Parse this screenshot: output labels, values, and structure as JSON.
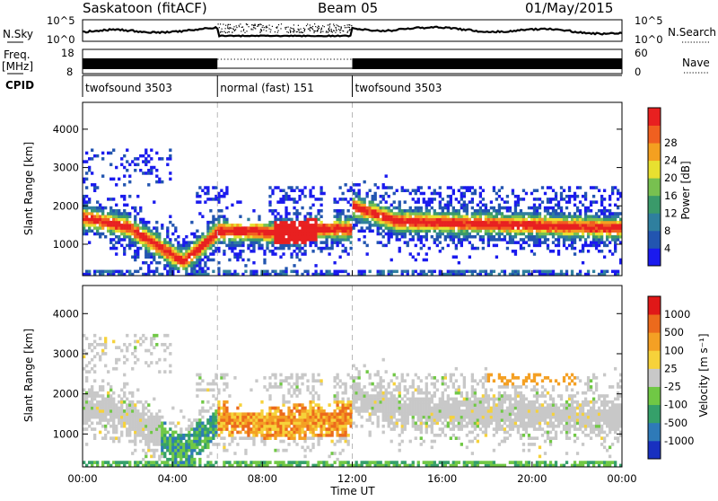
{
  "header": {
    "station": "Saskatoon (fitACF)",
    "beam": "Beam 05",
    "date": "01/May/2015"
  },
  "left_labels": {
    "nsky": "N.Sky",
    "freq_line1": "Freq.",
    "freq_line2": "[MHz]",
    "cpid": "CPID"
  },
  "right_labels": {
    "nsearch": "N.Search",
    "nave": "Nave"
  },
  "noise_panel": {
    "left_ticks": [
      "10^5",
      "10^0"
    ],
    "right_ticks": [
      "10^5",
      "10^0"
    ]
  },
  "freq_panel": {
    "left_ticks": [
      "18",
      "8"
    ],
    "right_ticks": [
      "60",
      "0"
    ]
  },
  "cpid_segments": [
    {
      "label": "twofsound 3503",
      "start_hour": 0,
      "end_hour": 6
    },
    {
      "label": "normal (fast) 151",
      "start_hour": 6,
      "end_hour": 12
    },
    {
      "label": "twofsound 3503",
      "start_hour": 12,
      "end_hour": 24
    }
  ],
  "chart_data": [
    {
      "type": "heatmap",
      "panel": "power",
      "ylabel": "Slant Range [km]",
      "y_ticks": [
        1000,
        2000,
        3000,
        4000
      ],
      "ylim": [
        180,
        4700
      ],
      "x_ticks": [
        "00:00",
        "04:00",
        "08:00",
        "12:00",
        "16:00",
        "20:00",
        "00:00"
      ],
      "xlim_hours": [
        0,
        24
      ],
      "colorbar": {
        "label": "Power [dB]",
        "ticks": [
          "4",
          "8",
          "12",
          "16",
          "20",
          "24",
          "28"
        ],
        "colors": [
          "#1a1aee",
          "#2255b0",
          "#2f7f9e",
          "#3a9a6a",
          "#78c050",
          "#e8e030",
          "#f4a020",
          "#f06020",
          "#e82020"
        ]
      }
    },
    {
      "type": "heatmap",
      "panel": "velocity",
      "ylabel": "Slant Range [km]",
      "y_ticks": [
        1000,
        2000,
        3000,
        4000
      ],
      "ylim": [
        180,
        4700
      ],
      "x_ticks": [
        "00:00",
        "04:00",
        "08:00",
        "12:00",
        "16:00",
        "20:00",
        "00:00"
      ],
      "xlim_hours": [
        0,
        24
      ],
      "xlabel": "Time UT",
      "colorbar": {
        "label": "Velocity [m s⁻¹]",
        "ticks": [
          "1000",
          "500",
          "100",
          "25",
          "-25",
          "-100",
          "-500",
          "-1000"
        ],
        "colors": [
          "#1830c0",
          "#2e7ab8",
          "#35a06a",
          "#70c845",
          "#c8c8c8",
          "#f6d23a",
          "#f4a024",
          "#ec6a1c",
          "#e01818"
        ]
      }
    }
  ],
  "palette": {
    "ground_gray": "#c0c0c0",
    "mode_line_gray": "#b8b8b8"
  }
}
